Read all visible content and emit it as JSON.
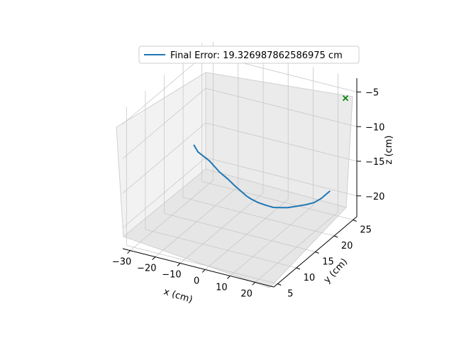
{
  "chart_data": {
    "type": "line",
    "projection": "3d",
    "title": "",
    "xlabel": "x (cm)",
    "ylabel": "y (cm)",
    "zlabel": "z (cm)",
    "x_ticks": [
      -30,
      -20,
      -10,
      0,
      10,
      20
    ],
    "y_ticks": [
      5,
      10,
      15,
      20,
      25
    ],
    "z_ticks": [
      -5,
      -10,
      -15,
      -20
    ],
    "grid": true,
    "legend_position": "upper-center",
    "series": [
      {
        "name": "Final Error: 19.326987862586975 cm",
        "color": "#1f77b4",
        "x": [
          -31,
          -28.5,
          -23,
          -18,
          -13.5,
          -10.5,
          -7.5,
          -4.5,
          -2.5,
          0.5,
          3.5,
          6.5,
          9,
          11.5,
          14.5,
          17.5,
          20,
          22,
          24.5
        ],
        "y": [
          21.5,
          21,
          20.4,
          19.7,
          19.1,
          18.6,
          18.2,
          17.9,
          17.8,
          17.7,
          17.7,
          17.8,
          18,
          18.3,
          18.7,
          19.1,
          19.6,
          20.2,
          20.9
        ],
        "z": [
          -15.9,
          -16.5,
          -17,
          -17.8,
          -18.2,
          -18.5,
          -18.8,
          -19.2,
          -19.4,
          -19.6,
          -19.7,
          -19.8,
          -19.7,
          -19.6,
          -19.3,
          -19.0,
          -18.7,
          -18.2,
          -17.2
        ]
      }
    ],
    "markers": [
      {
        "label": "target",
        "marker": "x",
        "color": "#008000",
        "x": 27.5,
        "y": 23,
        "z": -4.5
      }
    ]
  }
}
